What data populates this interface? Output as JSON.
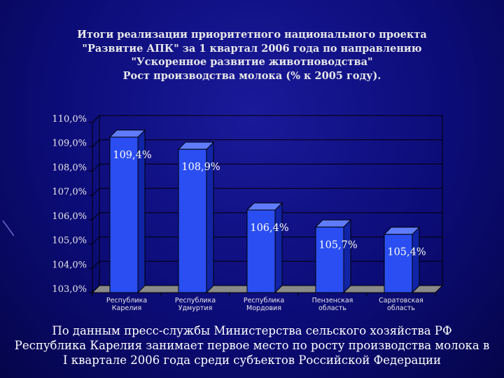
{
  "chart_data": {
    "type": "bar",
    "title_lines": [
      "Итоги реализации приоритетного национального проекта",
      "\"Развитие АПК\" за 1 квартал 2006 года по направлению",
      "\"Ускоренное развитие животноводства\"",
      "Рост производства молока (% к 2005 году)."
    ],
    "categories": [
      [
        "Республика",
        "Карелия"
      ],
      [
        "Республика",
        "Удмуртия"
      ],
      [
        "Республика",
        "Мордовия"
      ],
      [
        "Пензенская",
        "область"
      ],
      [
        "Саратовская",
        "область"
      ]
    ],
    "values": [
      109.4,
      108.9,
      106.4,
      105.7,
      105.4
    ],
    "data_labels": [
      "109,4%",
      "108,9%",
      "106,4%",
      "105,7%",
      "105,4%"
    ],
    "y_ticks": [
      "103,0%",
      "104,0%",
      "105,0%",
      "106,0%",
      "107,0%",
      "108,0%",
      "109,0%",
      "110,0%"
    ],
    "ylim": [
      103,
      110
    ],
    "grid": true,
    "bar_color": "#2a4ef2",
    "bar_side_color": "#1124a6",
    "bar_top_color": "#5f7cff"
  },
  "caption_lines": [
    "По данным пресс-службы Министерства сельского хозяйства РФ",
    "Республика Карелия занимает первое место по росту производства молока в",
    "I квартале 2006 года среди субъектов Российской Федерации"
  ]
}
